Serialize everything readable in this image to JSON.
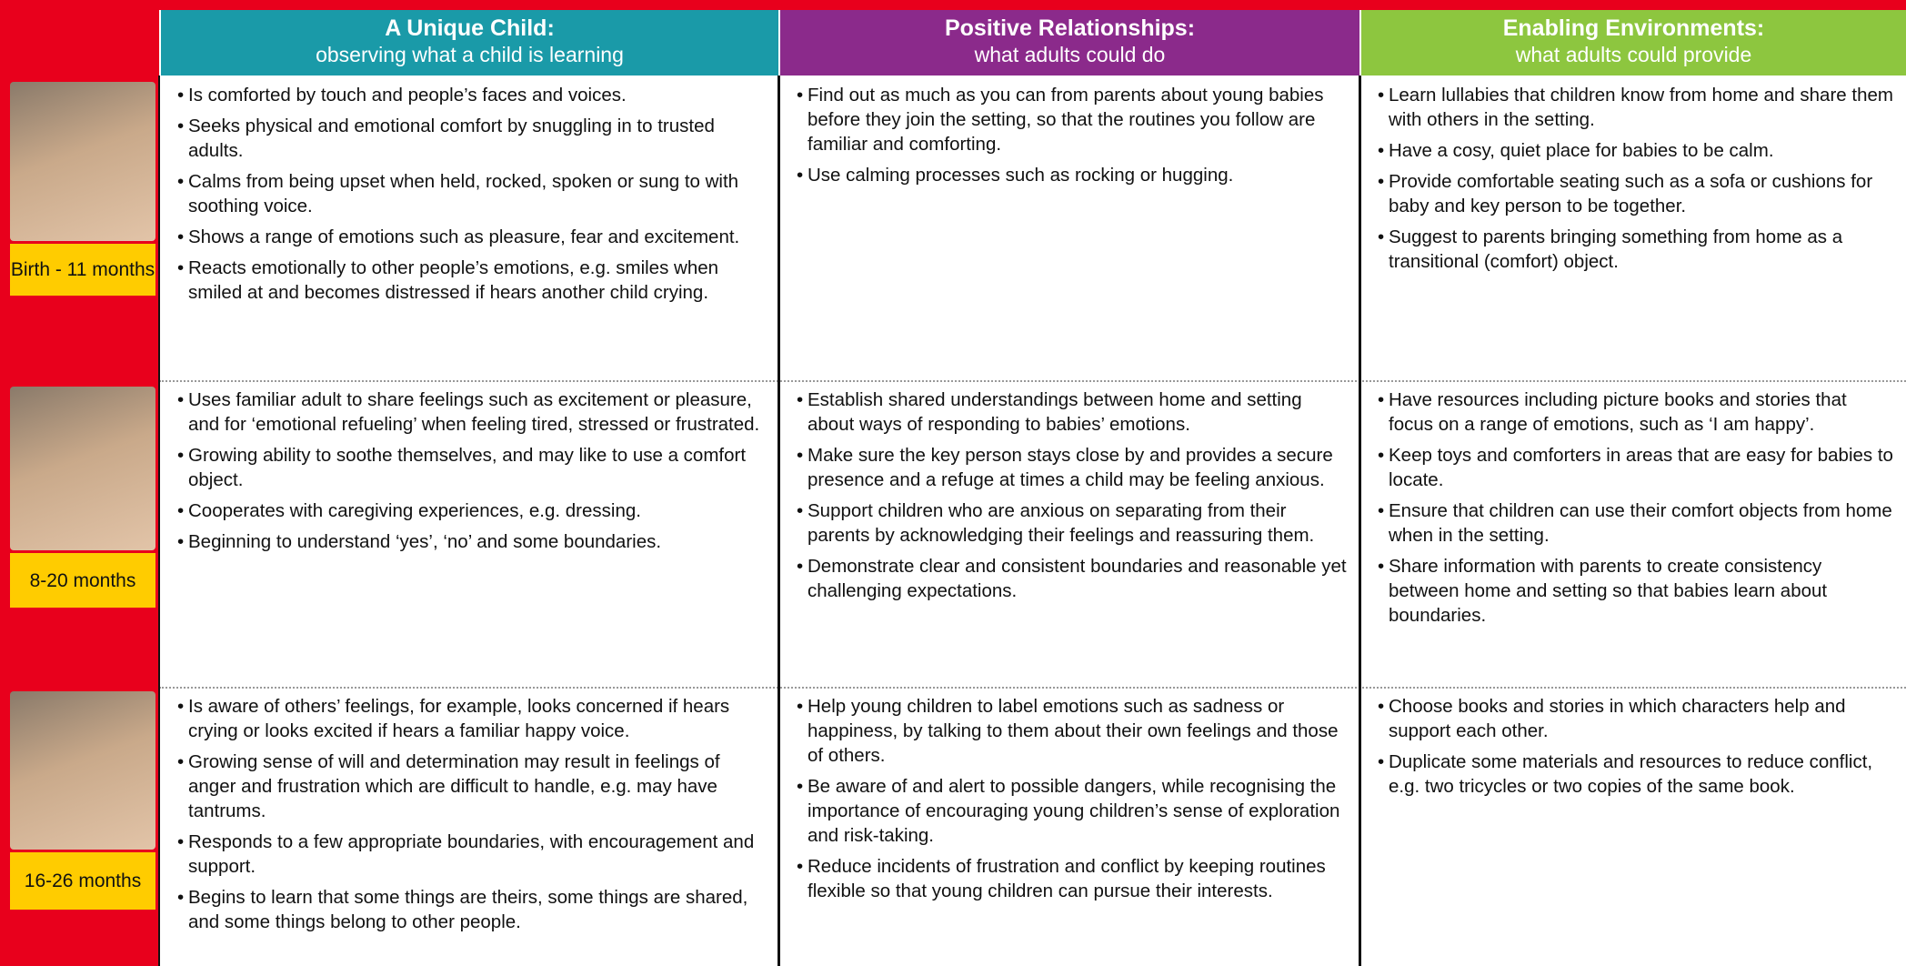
{
  "columns": [
    {
      "title": "A Unique Child:",
      "subtitle": "observing what a child is learning"
    },
    {
      "title": "Positive Relationships:",
      "subtitle": "what adults could do"
    },
    {
      "title": "Enabling Environments:",
      "subtitle": "what adults could provide"
    }
  ],
  "rows": [
    {
      "age": "Birth - 11 months",
      "cells": [
        [
          "Is comforted by touch and people’s faces and voices.",
          "Seeks physical and emotional comfort by snuggling in to trusted adults.",
          "Calms from being upset when held, rocked, spoken or sung to with soothing voice.",
          "Shows a range of emotions such as pleasure, fear and excitement.",
          "Reacts emotionally to other people’s emotions, e.g. smiles when smiled at and becomes distressed if hears another child crying."
        ],
        [
          "Find out as much as you can from parents about young babies before they join the setting, so that the routines you follow are familiar and comforting.",
          "Use calming processes such as rocking or hugging."
        ],
        [
          "Learn lullabies that children know from home and share them with others in the setting.",
          "Have a cosy, quiet place for babies to be calm.",
          "Provide comfortable seating such as a sofa or cushions for baby and key person to be together.",
          "Suggest to parents bringing something from home as a transitional (comfort) object."
        ]
      ]
    },
    {
      "age": "8-20 months",
      "cells": [
        [
          "Uses familiar adult to share feelings such as excitement or pleasure, and for ‘emotional refueling’ when feeling tired, stressed or frustrated.",
          "Growing ability to soothe themselves, and may like to use a comfort object.",
          "Cooperates with caregiving experiences, e.g. dressing.",
          "Beginning to understand ‘yes’, ‘no’ and some boundaries."
        ],
        [
          "Establish shared understandings between home and setting about ways of responding to babies’ emotions.",
          "Make sure the key person stays close by and provides a secure presence and a refuge at times a child may be feeling anxious.",
          "Support children who are anxious on separating from their parents by acknowledging their feelings and reassuring them.",
          "Demonstrate clear and consistent boundaries and reasonable yet challenging expectations."
        ],
        [
          "Have resources including picture books and stories that focus on a range of emotions, such as ‘I am happy’.",
          "Keep toys and comforters in areas that are easy for babies to locate.",
          "Ensure that children can use their comfort objects from home when in the setting.",
          "Share information with parents to create consistency between home and setting so that babies learn about boundaries."
        ]
      ]
    },
    {
      "age": "16-26 months",
      "cells": [
        [
          "Is aware of others’ feelings, for example, looks concerned if hears crying or looks excited if hears a familiar happy voice.",
          "Growing sense of will and determination may result in feelings of anger and frustration which are difficult to handle, e.g. may have tantrums.",
          "Responds to a few appropriate boundaries, with encouragement and support.",
          "Begins to learn that some things are theirs, some things are shared, and some things belong to other people."
        ],
        [
          "Help young children to label emotions such as sadness or happiness, by talking to them about their own feelings and those of others.",
          "Be aware of and alert to possible dangers, while recognising the importance of encouraging young children’s sense of exploration and risk-taking.",
          "Reduce incidents of frustration and conflict by keeping routines flexible so that young children can pursue their interests."
        ],
        [
          "Choose books and stories in which characters help and support each other.",
          "Duplicate some materials and resources to reduce conflict, e.g. two tricycles or two copies of the same book."
        ]
      ]
    }
  ]
}
